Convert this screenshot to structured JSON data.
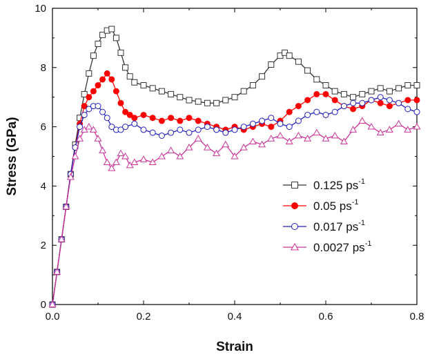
{
  "chart_data": {
    "type": "line",
    "title": "",
    "xlabel": "Strain",
    "ylabel": "Stress (GPa)",
    "xlim": [
      0.0,
      0.8
    ],
    "ylim": [
      0,
      10
    ],
    "x_ticks": [
      "0.0",
      "0.2",
      "0.4",
      "0.6",
      "0.8"
    ],
    "y_ticks": [
      "0",
      "2",
      "4",
      "6",
      "8",
      "10"
    ],
    "grid": false,
    "legend_position": "lower-right",
    "series": [
      {
        "name": "0.125 ps",
        "superscript": "-1",
        "color": "#333333",
        "marker": "square",
        "marker_fill": "open",
        "points": [
          [
            0.0,
            0.0
          ],
          [
            0.01,
            1.1
          ],
          [
            0.02,
            2.2
          ],
          [
            0.03,
            3.3
          ],
          [
            0.04,
            4.4
          ],
          [
            0.05,
            5.4
          ],
          [
            0.06,
            6.3
          ],
          [
            0.07,
            7.1
          ],
          [
            0.08,
            7.8
          ],
          [
            0.09,
            8.4
          ],
          [
            0.1,
            8.8
          ],
          [
            0.11,
            9.1
          ],
          [
            0.12,
            9.25
          ],
          [
            0.13,
            9.3
          ],
          [
            0.14,
            9.0
          ],
          [
            0.15,
            8.5
          ],
          [
            0.16,
            8.0
          ],
          [
            0.17,
            7.7
          ],
          [
            0.18,
            7.5
          ],
          [
            0.2,
            7.4
          ],
          [
            0.22,
            7.3
          ],
          [
            0.24,
            7.2
          ],
          [
            0.26,
            7.1
          ],
          [
            0.28,
            7.0
          ],
          [
            0.3,
            6.9
          ],
          [
            0.32,
            6.85
          ],
          [
            0.34,
            6.8
          ],
          [
            0.36,
            6.8
          ],
          [
            0.38,
            6.9
          ],
          [
            0.4,
            7.0
          ],
          [
            0.42,
            7.2
          ],
          [
            0.44,
            7.4
          ],
          [
            0.46,
            7.7
          ],
          [
            0.48,
            8.1
          ],
          [
            0.5,
            8.4
          ],
          [
            0.51,
            8.5
          ],
          [
            0.52,
            8.4
          ],
          [
            0.54,
            8.2
          ],
          [
            0.56,
            7.9
          ],
          [
            0.58,
            7.6
          ],
          [
            0.6,
            7.4
          ],
          [
            0.62,
            7.2
          ],
          [
            0.64,
            7.1
          ],
          [
            0.66,
            7.0
          ],
          [
            0.68,
            7.1
          ],
          [
            0.7,
            7.2
          ],
          [
            0.72,
            7.3
          ],
          [
            0.74,
            7.2
          ],
          [
            0.76,
            7.3
          ],
          [
            0.78,
            7.4
          ],
          [
            0.8,
            7.4
          ]
        ]
      },
      {
        "name": "0.05 ps",
        "superscript": "-1",
        "color": "#ff0000",
        "marker": "circle",
        "marker_fill": "filled",
        "points": [
          [
            0.0,
            0.0
          ],
          [
            0.01,
            1.1
          ],
          [
            0.02,
            2.2
          ],
          [
            0.03,
            3.3
          ],
          [
            0.04,
            4.4
          ],
          [
            0.05,
            5.3
          ],
          [
            0.06,
            6.1
          ],
          [
            0.07,
            6.7
          ],
          [
            0.08,
            7.0
          ],
          [
            0.09,
            7.2
          ],
          [
            0.1,
            7.4
          ],
          [
            0.11,
            7.6
          ],
          [
            0.12,
            7.8
          ],
          [
            0.13,
            7.6
          ],
          [
            0.14,
            7.2
          ],
          [
            0.15,
            6.8
          ],
          [
            0.16,
            6.5
          ],
          [
            0.17,
            6.4
          ],
          [
            0.18,
            6.3
          ],
          [
            0.2,
            6.4
          ],
          [
            0.22,
            6.3
          ],
          [
            0.24,
            6.2
          ],
          [
            0.26,
            6.3
          ],
          [
            0.28,
            6.2
          ],
          [
            0.3,
            6.3
          ],
          [
            0.32,
            6.2
          ],
          [
            0.34,
            6.1
          ],
          [
            0.36,
            6.0
          ],
          [
            0.38,
            5.9
          ],
          [
            0.4,
            6.0
          ],
          [
            0.42,
            5.9
          ],
          [
            0.44,
            6.0
          ],
          [
            0.46,
            6.1
          ],
          [
            0.48,
            6.0
          ],
          [
            0.5,
            6.2
          ],
          [
            0.52,
            6.5
          ],
          [
            0.54,
            6.7
          ],
          [
            0.56,
            6.9
          ],
          [
            0.58,
            7.1
          ],
          [
            0.6,
            7.1
          ],
          [
            0.62,
            6.9
          ],
          [
            0.64,
            6.7
          ],
          [
            0.66,
            6.6
          ],
          [
            0.68,
            6.7
          ],
          [
            0.7,
            6.9
          ],
          [
            0.72,
            6.8
          ],
          [
            0.74,
            6.7
          ],
          [
            0.76,
            6.8
          ],
          [
            0.78,
            6.9
          ],
          [
            0.8,
            6.9
          ]
        ]
      },
      {
        "name": "0.017 ps",
        "superscript": "-1",
        "color": "#1f1fbf",
        "marker": "circle",
        "marker_fill": "open",
        "points": [
          [
            0.0,
            0.0
          ],
          [
            0.01,
            1.1
          ],
          [
            0.02,
            2.2
          ],
          [
            0.03,
            3.3
          ],
          [
            0.04,
            4.4
          ],
          [
            0.05,
            5.3
          ],
          [
            0.06,
            6.0
          ],
          [
            0.07,
            6.4
          ],
          [
            0.08,
            6.6
          ],
          [
            0.09,
            6.7
          ],
          [
            0.1,
            6.7
          ],
          [
            0.11,
            6.5
          ],
          [
            0.12,
            6.3
          ],
          [
            0.13,
            6.0
          ],
          [
            0.14,
            5.9
          ],
          [
            0.15,
            5.9
          ],
          [
            0.16,
            6.0
          ],
          [
            0.18,
            6.1
          ],
          [
            0.2,
            5.9
          ],
          [
            0.22,
            5.8
          ],
          [
            0.24,
            5.7
          ],
          [
            0.26,
            5.8
          ],
          [
            0.28,
            5.9
          ],
          [
            0.3,
            5.8
          ],
          [
            0.32,
            5.9
          ],
          [
            0.34,
            6.0
          ],
          [
            0.36,
            5.9
          ],
          [
            0.38,
            5.8
          ],
          [
            0.4,
            5.9
          ],
          [
            0.42,
            6.0
          ],
          [
            0.44,
            6.1
          ],
          [
            0.46,
            6.2
          ],
          [
            0.48,
            6.3
          ],
          [
            0.5,
            6.1
          ],
          [
            0.52,
            6.0
          ],
          [
            0.54,
            6.2
          ],
          [
            0.56,
            6.4
          ],
          [
            0.58,
            6.5
          ],
          [
            0.6,
            6.4
          ],
          [
            0.62,
            6.5
          ],
          [
            0.64,
            6.7
          ],
          [
            0.66,
            6.8
          ],
          [
            0.68,
            6.8
          ],
          [
            0.7,
            6.9
          ],
          [
            0.72,
            7.0
          ],
          [
            0.74,
            6.9
          ],
          [
            0.76,
            6.8
          ],
          [
            0.78,
            6.6
          ],
          [
            0.8,
            6.5
          ]
        ]
      },
      {
        "name": "0.0027 ps",
        "superscript": "-1",
        "color": "#cc3399",
        "marker": "triangle",
        "marker_fill": "open",
        "points": [
          [
            0.0,
            0.0
          ],
          [
            0.01,
            1.1
          ],
          [
            0.02,
            2.2
          ],
          [
            0.03,
            3.3
          ],
          [
            0.04,
            4.3
          ],
          [
            0.05,
            5.0
          ],
          [
            0.06,
            5.6
          ],
          [
            0.07,
            5.9
          ],
          [
            0.08,
            6.0
          ],
          [
            0.09,
            5.9
          ],
          [
            0.1,
            5.6
          ],
          [
            0.11,
            5.2
          ],
          [
            0.12,
            4.8
          ],
          [
            0.13,
            4.6
          ],
          [
            0.14,
            4.8
          ],
          [
            0.15,
            5.1
          ],
          [
            0.16,
            5.0
          ],
          [
            0.17,
            4.7
          ],
          [
            0.18,
            4.8
          ],
          [
            0.2,
            4.9
          ],
          [
            0.22,
            4.8
          ],
          [
            0.24,
            5.0
          ],
          [
            0.26,
            5.2
          ],
          [
            0.28,
            5.0
          ],
          [
            0.3,
            5.3
          ],
          [
            0.32,
            5.6
          ],
          [
            0.34,
            5.3
          ],
          [
            0.36,
            5.1
          ],
          [
            0.38,
            5.4
          ],
          [
            0.4,
            5.0
          ],
          [
            0.42,
            5.3
          ],
          [
            0.44,
            5.5
          ],
          [
            0.46,
            5.4
          ],
          [
            0.48,
            5.6
          ],
          [
            0.5,
            5.7
          ],
          [
            0.52,
            5.5
          ],
          [
            0.54,
            5.7
          ],
          [
            0.56,
            5.6
          ],
          [
            0.58,
            5.8
          ],
          [
            0.6,
            5.6
          ],
          [
            0.62,
            5.7
          ],
          [
            0.64,
            5.5
          ],
          [
            0.66,
            5.9
          ],
          [
            0.68,
            6.2
          ],
          [
            0.7,
            6.0
          ],
          [
            0.72,
            5.8
          ],
          [
            0.74,
            5.9
          ],
          [
            0.76,
            6.1
          ],
          [
            0.78,
            5.9
          ],
          [
            0.8,
            6.0
          ]
        ]
      }
    ]
  }
}
